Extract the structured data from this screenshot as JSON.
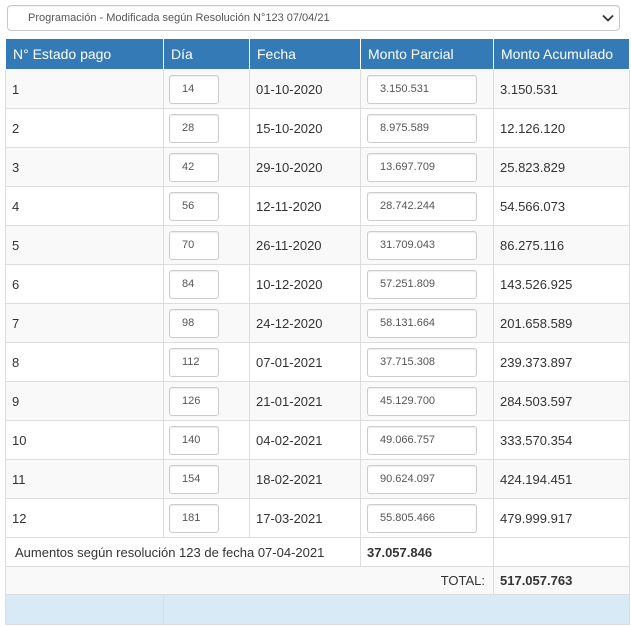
{
  "selector": {
    "selected": "Programación - Modificada según Resolución N°123 07/04/21",
    "icon": "chevron-down-icon"
  },
  "table": {
    "headers": [
      "N° Estado pago",
      "Día",
      "Fecha",
      "Monto Parcial",
      "Monto Acumulado"
    ],
    "rows": [
      {
        "n": "1",
        "dia": "14",
        "fecha": "01-10-2020",
        "parcial": "3.150.531",
        "acumulado": "3.150.531"
      },
      {
        "n": "2",
        "dia": "28",
        "fecha": "15-10-2020",
        "parcial": "8.975.589",
        "acumulado": "12.126.120"
      },
      {
        "n": "3",
        "dia": "42",
        "fecha": "29-10-2020",
        "parcial": "13.697.709",
        "acumulado": "25.823.829"
      },
      {
        "n": "4",
        "dia": "56",
        "fecha": "12-11-2020",
        "parcial": "28.742.244",
        "acumulado": "54.566.073"
      },
      {
        "n": "5",
        "dia": "70",
        "fecha": "26-11-2020",
        "parcial": "31.709.043",
        "acumulado": "86.275.116"
      },
      {
        "n": "6",
        "dia": "84",
        "fecha": "10-12-2020",
        "parcial": "57.251.809",
        "acumulado": "143.526.925"
      },
      {
        "n": "7",
        "dia": "98",
        "fecha": "24-12-2020",
        "parcial": "58.131.664",
        "acumulado": "201.658.589"
      },
      {
        "n": "8",
        "dia": "112",
        "fecha": "07-01-2021",
        "parcial": "37.715.308",
        "acumulado": "239.373.897"
      },
      {
        "n": "9",
        "dia": "126",
        "fecha": "21-01-2021",
        "parcial": "45.129.700",
        "acumulado": "284.503.597"
      },
      {
        "n": "10",
        "dia": "140",
        "fecha": "04-02-2021",
        "parcial": "49.066.757",
        "acumulado": "333.570.354"
      },
      {
        "n": "11",
        "dia": "154",
        "fecha": "18-02-2021",
        "parcial": "90.624.097",
        "acumulado": "424.194.451"
      },
      {
        "n": "12",
        "dia": "181",
        "fecha": "17-03-2021",
        "parcial": "55.805.466",
        "acumulado": "479.999.917"
      }
    ],
    "aumentos_label": "Aumentos según resolución 123 de fecha 07-04-2021",
    "aumentos_value": "37.057.846",
    "total_label": "TOTAL:",
    "total_value": "517.057.763"
  },
  "colors": {
    "header_bg": "#337ab7",
    "footer_bg": "#d9eaf7"
  }
}
